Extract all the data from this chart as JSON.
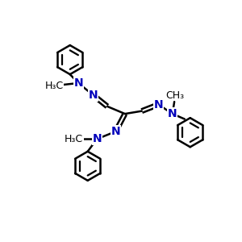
{
  "background_color": "#ffffff",
  "bond_color": "#000000",
  "N_color": "#0000bb",
  "text_color": "#000000",
  "linewidth": 1.8,
  "figsize": [
    3.0,
    3.0
  ],
  "dpi": 100,
  "xlim": [
    0,
    10
  ],
  "ylim": [
    0,
    10
  ]
}
